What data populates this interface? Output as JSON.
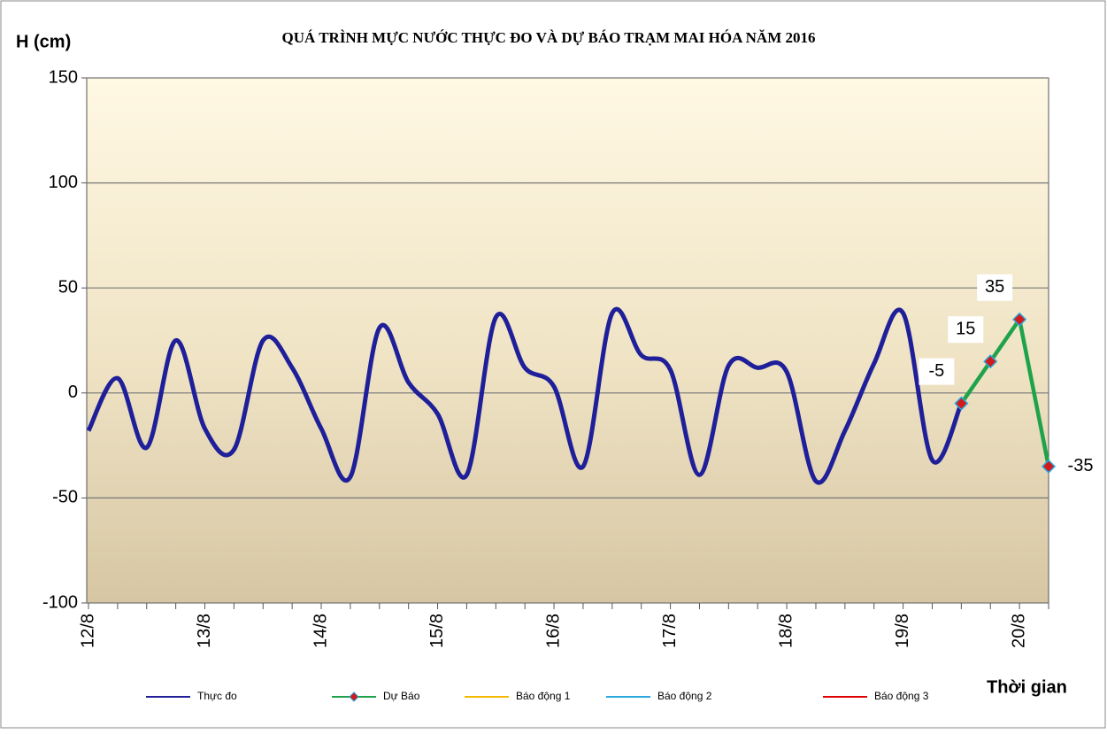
{
  "chart_data": {
    "type": "line",
    "title": "QUÁ TRÌNH MỰC NƯỚC THỰC ĐO VÀ DỰ BÁO TRẠM MAI HÓA  NĂM 2016",
    "y_label": "H (cm)",
    "x_label": "Thời gian",
    "categories": [
      "12/8",
      null,
      null,
      null,
      "13/8",
      null,
      null,
      null,
      "14/8",
      null,
      null,
      null,
      "15/8",
      null,
      null,
      null,
      "16/8",
      null,
      null,
      null,
      "17/8",
      null,
      null,
      null,
      "18/8",
      null,
      null,
      null,
      "19/8",
      null,
      null,
      null,
      "20/8",
      null
    ],
    "series": [
      {
        "name": "Thực đo",
        "color": "#1f1f9a",
        "values": [
          -18,
          7,
          -26,
          25,
          -17,
          -27,
          25,
          12,
          -17,
          -40,
          31,
          5,
          -10,
          -39,
          36,
          12,
          3,
          -35,
          38,
          18,
          11,
          -39,
          13,
          12,
          10,
          -42,
          -18,
          14,
          38,
          -32,
          -5,
          null,
          null,
          null
        ]
      },
      {
        "name": "Dự Báo",
        "color": "#1fa34a",
        "values": [
          null,
          null,
          null,
          null,
          null,
          null,
          null,
          null,
          null,
          null,
          null,
          null,
          null,
          null,
          null,
          null,
          null,
          null,
          null,
          null,
          null,
          null,
          null,
          null,
          null,
          null,
          null,
          null,
          null,
          null,
          -5,
          15,
          35,
          -35
        ],
        "value_labels": [
          null,
          null,
          null,
          null,
          null,
          null,
          null,
          null,
          null,
          null,
          null,
          null,
          null,
          null,
          null,
          null,
          null,
          null,
          null,
          null,
          null,
          null,
          null,
          null,
          null,
          null,
          null,
          null,
          null,
          null,
          "-5",
          "15",
          "35",
          "-35"
        ]
      },
      {
        "name": "Báo động 1",
        "color": "#f5b800"
      },
      {
        "name": "Báo động 2",
        "color": "#29a8e0"
      },
      {
        "name": "Báo động 3",
        "color": "#e00000"
      }
    ],
    "ylim": [
      -100,
      150
    ],
    "yticks": [
      -100,
      -50,
      0,
      50,
      100,
      150
    ],
    "grid": true
  }
}
